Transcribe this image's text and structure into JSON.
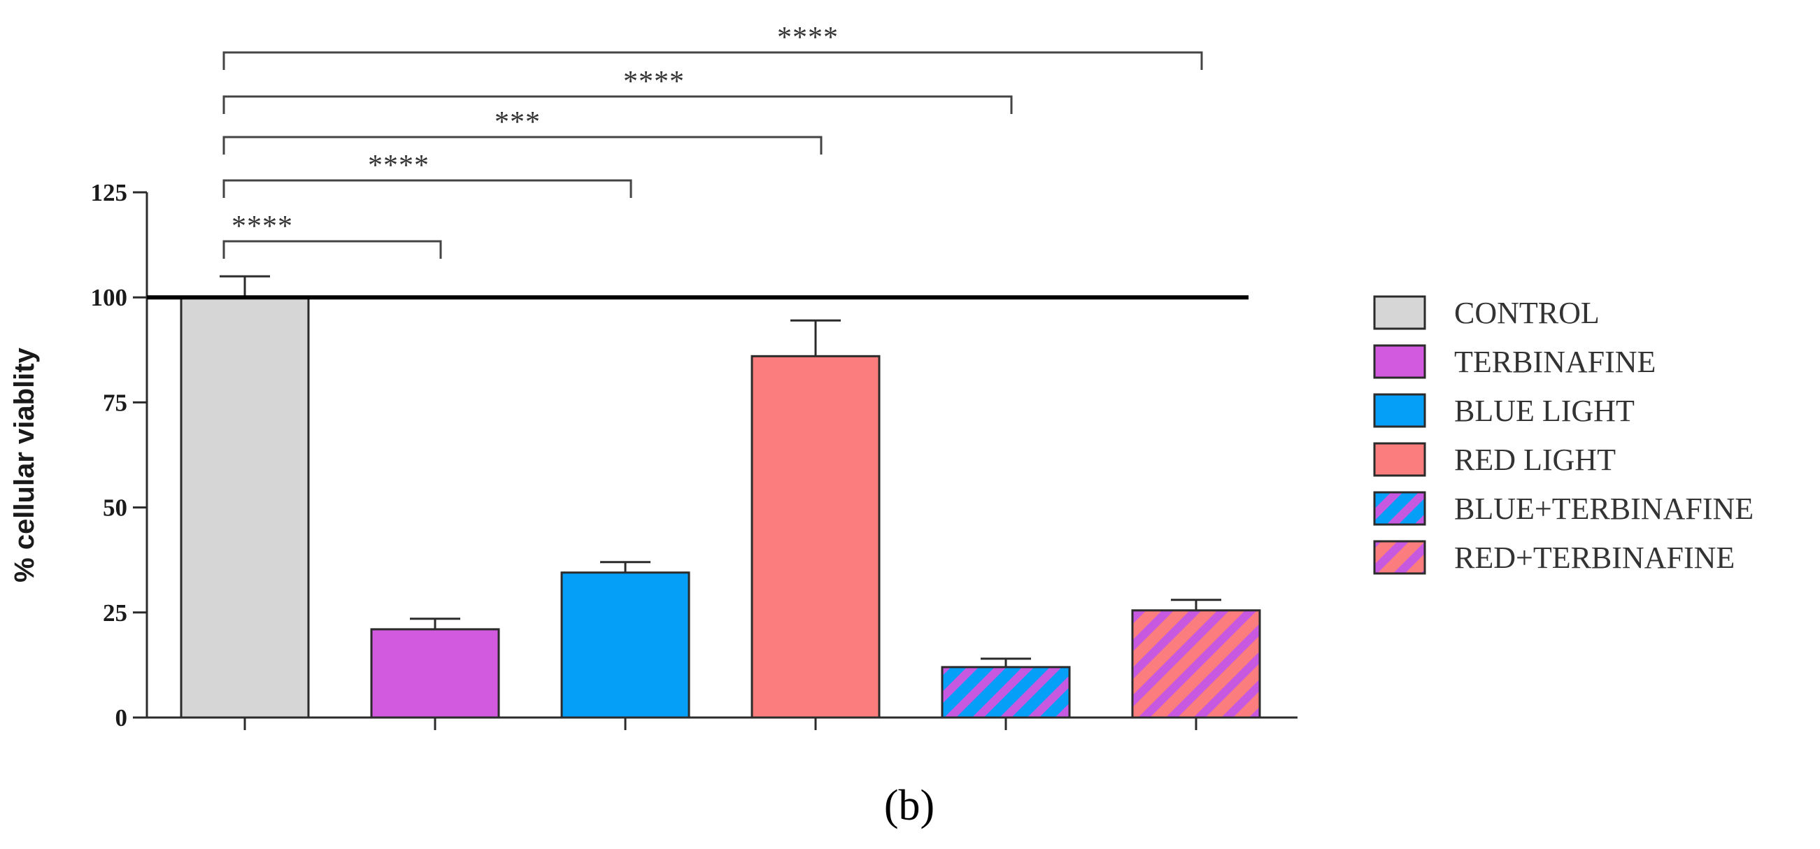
{
  "panel_label": "(b)",
  "chart_data": {
    "type": "bar",
    "title": "",
    "xlabel": "",
    "ylabel": "% cellular viablity",
    "ylim": [
      0,
      125
    ],
    "yticks": [
      0,
      25,
      50,
      75,
      100,
      125
    ],
    "categories": [
      "CONTROL",
      "TERBINAFINE",
      "BLUE LIGHT",
      "RED LIGHT",
      "BLUE+TERBINAFINE",
      "RED+TERBINAFINE"
    ],
    "values": [
      100,
      21,
      34.5,
      86,
      12,
      25.5
    ],
    "errors": [
      5,
      2.5,
      2.5,
      8.5,
      2,
      2.5
    ],
    "reference_line": 100,
    "colors": [
      "#d6d6d6",
      "#d15ade",
      "#069ff7",
      "#fb7d7d",
      "#069ff7",
      "#fb7d7d"
    ],
    "hatch": [
      false,
      false,
      false,
      false,
      true,
      true
    ],
    "hatch_color": "#c759e0",
    "legend": {
      "placement": "right",
      "entries": [
        "CONTROL",
        "TERBINAFINE",
        "BLUE LIGHT",
        "RED LIGHT",
        "BLUE+TERBINAFINE",
        "RED+TERBINAFINE"
      ]
    },
    "significance": [
      {
        "from": "CONTROL",
        "to": "TERBINAFINE",
        "label": "****"
      },
      {
        "from": "CONTROL",
        "to": "BLUE LIGHT",
        "label": "****"
      },
      {
        "from": "CONTROL",
        "to": "RED LIGHT",
        "label": "***"
      },
      {
        "from": "CONTROL",
        "to": "BLUE+TERBINAFINE",
        "label": "****"
      },
      {
        "from": "CONTROL",
        "to": "RED+TERBINAFINE",
        "label": "****"
      }
    ]
  }
}
